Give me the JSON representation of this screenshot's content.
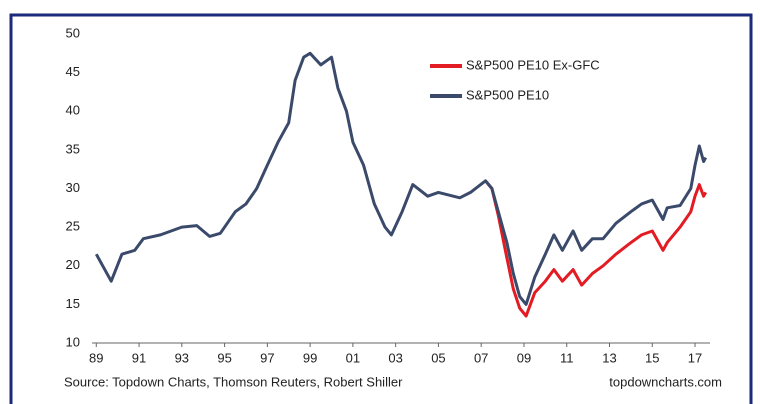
{
  "chart_data": {
    "type": "line",
    "x": [
      1989.0,
      1989.3,
      1989.7,
      1990.2,
      1990.8,
      1991.2,
      1992,
      1993,
      1993.7,
      1994.3,
      1994.8,
      1995.5,
      1996,
      1996.5,
      1997,
      1997.5,
      1998,
      1998.3,
      1998.7,
      1999,
      1999.5,
      2000,
      2000.3,
      2000.7,
      2001,
      2001.5,
      2002,
      2002.5,
      2002.8,
      2003.3,
      2003.8,
      2004.5,
      2005,
      2006,
      2006.5,
      2007.2,
      2007.5,
      2007.8,
      2008.2,
      2008.5,
      2008.8,
      2009.1,
      2009.5,
      2010,
      2010.4,
      2010.8,
      2011.3,
      2011.7,
      2012.2,
      2012.7,
      2013.3,
      2014,
      2014.5,
      2015,
      2015.5,
      2015.7,
      2016.3,
      2016.8,
      2017,
      2017.2,
      2017.4,
      2017.5
    ],
    "series": [
      {
        "name": "S&P500 PE10 Ex-GFC",
        "color": "#e31b23",
        "values": [
          null,
          null,
          null,
          null,
          null,
          null,
          null,
          null,
          null,
          null,
          null,
          null,
          null,
          null,
          null,
          null,
          null,
          null,
          null,
          null,
          null,
          null,
          null,
          null,
          null,
          null,
          null,
          null,
          null,
          null,
          null,
          null,
          null,
          null,
          null,
          31,
          30,
          26.5,
          21,
          17,
          14.5,
          13.5,
          16.5,
          18,
          19.5,
          18,
          19.5,
          17.5,
          19,
          20,
          21.5,
          23,
          24,
          24.5,
          22,
          23,
          25,
          27,
          29,
          30.5,
          29,
          29.5
        ]
      },
      {
        "name": "S&P500 PE10",
        "color": "#3b4a6b",
        "values": [
          21.5,
          20,
          18,
          21.5,
          22,
          23.5,
          24,
          25,
          25.2,
          23.8,
          24.2,
          27,
          28,
          30,
          33,
          36,
          38.5,
          44,
          47,
          47.5,
          46,
          47,
          43,
          40,
          36,
          33,
          28,
          25,
          24,
          27,
          30.5,
          29,
          29.5,
          28.8,
          29.5,
          31,
          30,
          27,
          23,
          19,
          16,
          15,
          18.5,
          21.5,
          24,
          22,
          24.5,
          22,
          23.5,
          23.5,
          25.5,
          27,
          28,
          28.5,
          26,
          27.5,
          27.8,
          30,
          33,
          35.5,
          33.5,
          34
        ]
      }
    ],
    "xlim": [
      1988.8,
      2017.7
    ],
    "xticks": [
      {
        "value": 1989,
        "label": "89"
      },
      {
        "value": 1991,
        "label": "91"
      },
      {
        "value": 1993,
        "label": "93"
      },
      {
        "value": 1995,
        "label": "95"
      },
      {
        "value": 1997,
        "label": "97"
      },
      {
        "value": 1999,
        "label": "99"
      },
      {
        "value": 2001,
        "label": "01"
      },
      {
        "value": 2003,
        "label": "03"
      },
      {
        "value": 2005,
        "label": "05"
      },
      {
        "value": 2007,
        "label": "07"
      },
      {
        "value": 2009,
        "label": "09"
      },
      {
        "value": 2011,
        "label": "11"
      },
      {
        "value": 2013,
        "label": "13"
      },
      {
        "value": 2015,
        "label": "15"
      },
      {
        "value": 2017,
        "label": "17"
      }
    ],
    "ylim": [
      10,
      50
    ],
    "yticks": [
      10,
      15,
      20,
      25,
      30,
      35,
      40,
      45,
      50
    ],
    "source": "Source: Topdown Charts, Thomson Reuters, Robert Shiller",
    "credit": "topdowncharts.com"
  }
}
